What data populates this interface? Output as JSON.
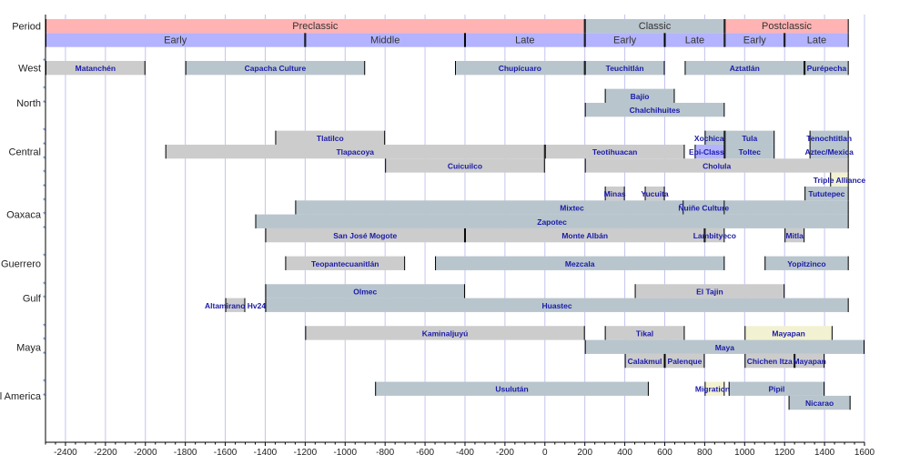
{
  "chart_data": {
    "type": "timeline",
    "xlim": [
      -2500,
      1600
    ],
    "x_ticks": [
      -2400,
      -2200,
      -2000,
      -1800,
      -1600,
      -1400,
      -1200,
      -1000,
      -800,
      -600,
      -400,
      -200,
      0,
      200,
      400,
      600,
      800,
      1000,
      1200,
      1400,
      1600
    ],
    "grid": true,
    "colors": {
      "preclassic": "#ffb3b3",
      "classic": "#b8c5cd",
      "subperiod": "#b3b3ff",
      "site": "#cccccc",
      "culture": "#b8c5cd",
      "event": "#f2f2d2",
      "label": "#1a1aa8"
    },
    "period_row": {
      "label": "Period",
      "periods": [
        {
          "label": "Preclassic",
          "start": -2500,
          "end": 200,
          "color": "preclassic"
        },
        {
          "label": "Classic",
          "start": 200,
          "end": 900,
          "color": "classic"
        },
        {
          "label": "Postclassic",
          "start": 900,
          "end": 1521,
          "color": "preclassic"
        }
      ],
      "subperiods": [
        {
          "label": "Early",
          "start": -2500,
          "end": -1200
        },
        {
          "label": "Middle",
          "start": -1200,
          "end": -400
        },
        {
          "label": "Late",
          "start": -400,
          "end": 200
        },
        {
          "label": "Early",
          "start": 200,
          "end": 600
        },
        {
          "label": "Late",
          "start": 600,
          "end": 900
        },
        {
          "label": "Early",
          "start": 900,
          "end": 1200
        },
        {
          "label": "Late",
          "start": 1200,
          "end": 1521
        }
      ]
    },
    "regions": [
      {
        "label": "West",
        "lanes": 1,
        "bars": [
          {
            "label": "Matanchén",
            "start": -2500,
            "end": -2000,
            "lane": 0,
            "color": "site"
          },
          {
            "label": "Capacha Culture",
            "start": -1800,
            "end": -900,
            "lane": 0,
            "color": "culture"
          },
          {
            "label": "Chupícuaro",
            "start": -450,
            "end": 200,
            "lane": 0,
            "color": "culture"
          },
          {
            "label": "Teuchitlán",
            "start": 200,
            "end": 600,
            "lane": 0,
            "color": "culture"
          },
          {
            "label": "Aztatlán",
            "start": 700,
            "end": 1300,
            "lane": 0,
            "color": "culture"
          },
          {
            "label": "Purépecha",
            "start": 1300,
            "end": 1521,
            "lane": 0,
            "color": "culture"
          }
        ]
      },
      {
        "label": "North",
        "lanes": 2,
        "bars": [
          {
            "label": "Bajío",
            "start": 300,
            "end": 650,
            "lane": 0,
            "color": "culture"
          },
          {
            "label": "Chalchihuites",
            "start": 200,
            "end": 900,
            "lane": 1,
            "color": "culture"
          }
        ]
      },
      {
        "label": "Central",
        "lanes": 4,
        "bars": [
          {
            "label": "Tlatilco",
            "start": -1350,
            "end": -800,
            "lane": 0,
            "color": "site"
          },
          {
            "label": "Xochicalco",
            "start": 800,
            "end": 900,
            "lane": 0,
            "color": "culture"
          },
          {
            "label": "Tula",
            "start": 900,
            "end": 1150,
            "lane": 0,
            "color": "culture"
          },
          {
            "label": "Tenochtitlan",
            "start": 1325,
            "end": 1521,
            "lane": 0,
            "color": "culture"
          },
          {
            "label": "Tlapacoya",
            "start": -1900,
            "end": 0,
            "lane": 1,
            "color": "site"
          },
          {
            "label": "Teotihuacan",
            "start": 0,
            "end": 700,
            "lane": 1,
            "color": "site"
          },
          {
            "label": "Epi-Classic",
            "start": 750,
            "end": 900,
            "lane": 1,
            "color": "subperiod"
          },
          {
            "label": "Toltec",
            "start": 900,
            "end": 1150,
            "lane": 1,
            "color": "culture"
          },
          {
            "label": "Aztec/Mexica",
            "start": 1325,
            "end": 1521,
            "lane": 1,
            "color": "culture"
          },
          {
            "label": "Cuicuilco",
            "start": -800,
            "end": 0,
            "lane": 2,
            "color": "site"
          },
          {
            "label": "Cholula",
            "start": 200,
            "end": 1521,
            "lane": 2,
            "color": "site"
          },
          {
            "label": "Triple Alliance",
            "start": 1428,
            "end": 1521,
            "lane": 3,
            "color": "event"
          }
        ]
      },
      {
        "label": "Oaxaca",
        "lanes": 4,
        "bars": [
          {
            "label": "Minas",
            "start": 300,
            "end": 400,
            "lane": 0,
            "color": "site"
          },
          {
            "label": "Yucuita",
            "start": 500,
            "end": 600,
            "lane": 0,
            "color": "site"
          },
          {
            "label": "Tututepec",
            "start": 1300,
            "end": 1521,
            "lane": 0,
            "color": "culture"
          },
          {
            "label": "Mixtec",
            "start": -1250,
            "end": 1521,
            "lane": 1,
            "color": "culture"
          },
          {
            "label": "Ñuiñe Culture",
            "start": 690,
            "end": 900,
            "lane": 1,
            "color": "culture"
          },
          {
            "label": "Zapotec",
            "start": -1450,
            "end": 1521,
            "lane": 2,
            "color": "culture"
          },
          {
            "label": "San José Mogote",
            "start": -1400,
            "end": -400,
            "lane": 3,
            "color": "site"
          },
          {
            "label": "Monte Albán",
            "start": -400,
            "end": 800,
            "lane": 3,
            "color": "site"
          },
          {
            "label": "Lambityeco",
            "start": 800,
            "end": 900,
            "lane": 3,
            "color": "site"
          },
          {
            "label": "Mitla",
            "start": 1200,
            "end": 1300,
            "lane": 3,
            "color": "site"
          }
        ]
      },
      {
        "label": "Guerrero",
        "lanes": 1,
        "bars": [
          {
            "label": "Teopantecuanitlán",
            "start": -1300,
            "end": -700,
            "lane": 0,
            "color": "site"
          },
          {
            "label": "Mezcala",
            "start": -550,
            "end": 900,
            "lane": 0,
            "color": "culture"
          },
          {
            "label": "Yopitzinco",
            "start": 1100,
            "end": 1521,
            "lane": 0,
            "color": "culture"
          }
        ]
      },
      {
        "label": "Gulf",
        "lanes": 2,
        "bars": [
          {
            "label": "Olmec",
            "start": -1400,
            "end": -400,
            "lane": 0,
            "color": "culture"
          },
          {
            "label": "El Tajin",
            "start": 450,
            "end": 1200,
            "lane": 0,
            "color": "site"
          },
          {
            "label": "Altamirano Hv24",
            "start": -1600,
            "end": -1500,
            "lane": 1,
            "color": "site"
          },
          {
            "label": "Huastec",
            "start": -1400,
            "end": 1521,
            "lane": 1,
            "color": "culture"
          }
        ]
      },
      {
        "label": "Maya",
        "lanes": 3,
        "bars": [
          {
            "label": "Kaminaljuyú",
            "start": -1200,
            "end": 200,
            "lane": 0,
            "color": "site"
          },
          {
            "label": "Tikal",
            "start": 300,
            "end": 700,
            "lane": 0,
            "color": "site"
          },
          {
            "label": "Mayapan",
            "start": 1000,
            "end": 1440,
            "lane": 0,
            "color": "event"
          },
          {
            "label": "Maya",
            "start": 200,
            "end": 1600,
            "lane": 1,
            "color": "culture"
          },
          {
            "label": "Calakmul",
            "start": 400,
            "end": 600,
            "lane": 2,
            "color": "site"
          },
          {
            "label": "Palenque",
            "start": 600,
            "end": 800,
            "lane": 2,
            "color": "site"
          },
          {
            "label": "Chichen Itza",
            "start": 1000,
            "end": 1250,
            "lane": 2,
            "color": "site"
          },
          {
            "label": "Mayapan",
            "start": 1250,
            "end": 1400,
            "lane": 2,
            "color": "site"
          }
        ]
      },
      {
        "label": "Central America",
        "lanes": 2,
        "bars": [
          {
            "label": "Usulután",
            "start": -850,
            "end": 520,
            "lane": 0,
            "color": "culture"
          },
          {
            "label": "Migrations",
            "start": 800,
            "end": 900,
            "lane": 0,
            "color": "event"
          },
          {
            "label": "Pipil",
            "start": 920,
            "end": 1400,
            "lane": 0,
            "color": "culture"
          },
          {
            "label": "Nicarao",
            "start": 1220,
            "end": 1530,
            "lane": 1,
            "color": "culture"
          }
        ]
      }
    ]
  }
}
